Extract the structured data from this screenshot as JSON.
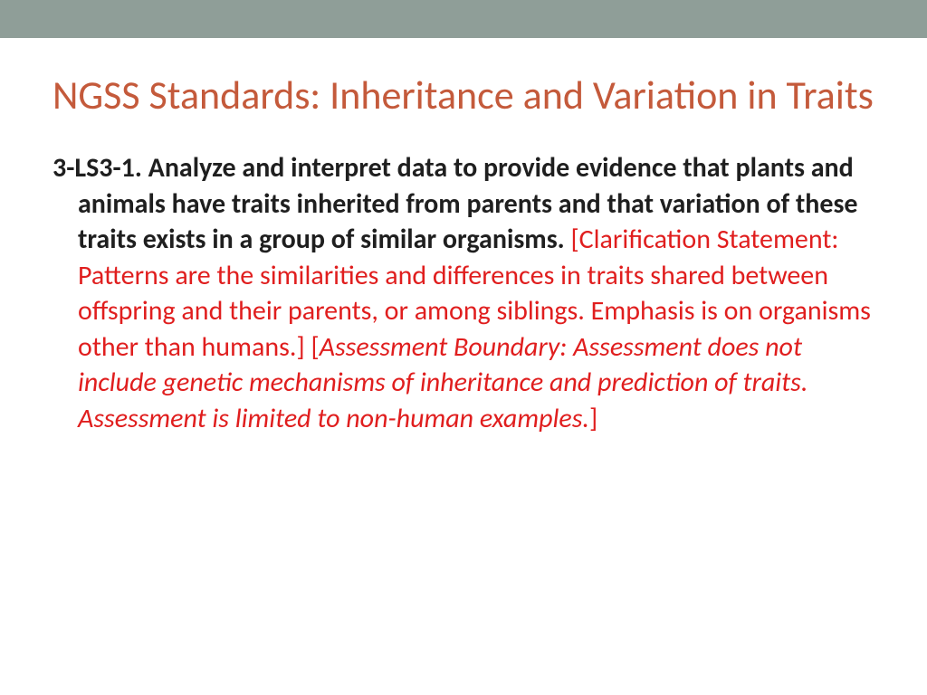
{
  "colors": {
    "top_bar": "#8f9e98",
    "title": "#c45a3b",
    "body_dark": "#1f1f1f",
    "accent_red": "#e01e1e",
    "background": "#ffffff"
  },
  "slide": {
    "title": "NGSS Standards: Inheritance and Variation in Traits",
    "standard_code": "3-LS3-1.",
    "standard_text": " Analyze and interpret data to provide evidence that plants and animals have traits inherited from parents and that variation of these traits exists in a group of similar organisms. ",
    "clarification": "[Clarification Statement: Patterns are the similarities and differences in traits shared between offspring and their parents, or among siblings. Emphasis is on organisms other than humans.] ",
    "assessment_open": "[",
    "assessment_text": "Assessment Boundary: Assessment does not include genetic mechanisms of inheritance and prediction of traits. Assessment is limited to non-human examples.",
    "assessment_close": "]"
  },
  "typography": {
    "title_fontsize": 44,
    "body_fontsize": 30
  }
}
